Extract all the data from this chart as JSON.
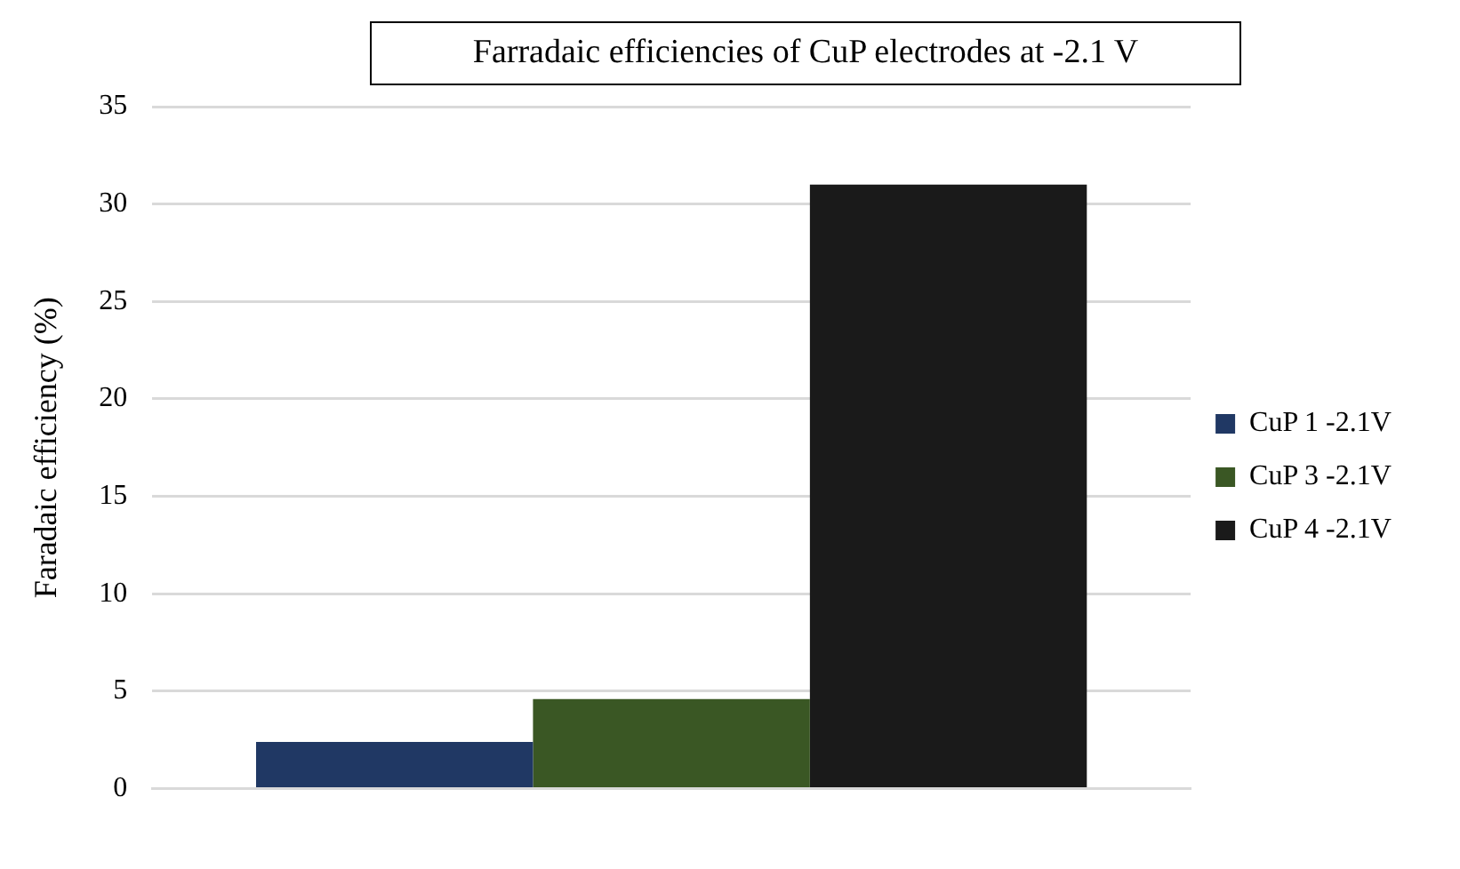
{
  "chart_data": {
    "type": "bar",
    "title": "Farradaic efficiencies of CuP electrodes at -2.1 V",
    "ylabel": "Faradaic efficiency (%)",
    "categories": [
      null
    ],
    "series": [
      {
        "name": "CuP 1 -2.1V",
        "color": "#203864",
        "values": [
          2.4
        ]
      },
      {
        "name": "CuP 3 -2.1V",
        "color": "#3a5724",
        "values": [
          4.6
        ]
      },
      {
        "name": "CuP 4 -2.1V",
        "color": "#1a1a1a",
        "values": [
          31.0
        ]
      }
    ],
    "ylim": [
      0,
      35
    ],
    "yticks": [
      0,
      5,
      10,
      15,
      20,
      25,
      30,
      35
    ],
    "grid": "y",
    "legend": "right"
  }
}
